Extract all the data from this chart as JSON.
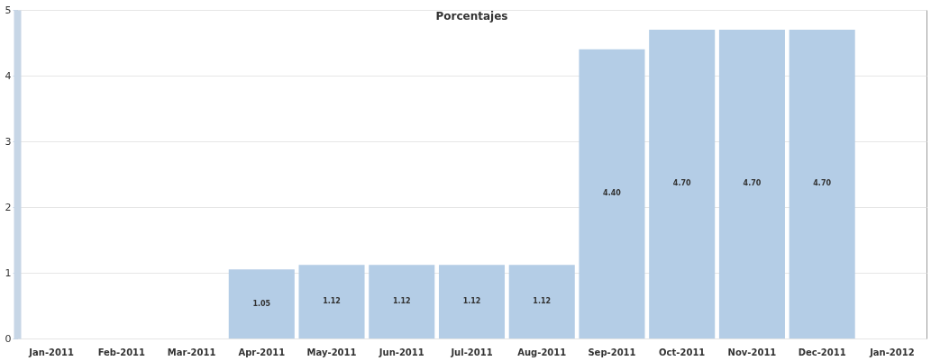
{
  "chart_data": {
    "type": "bar",
    "title": "Porcentajes",
    "categories": [
      "Jan-2011",
      "Feb-2011",
      "Mar-2011",
      "Apr-2011",
      "May-2011",
      "Jun-2011",
      "Jul-2011",
      "Aug-2011",
      "Sep-2011",
      "Oct-2011",
      "Nov-2011",
      "Dec-2011",
      "Jan-2012"
    ],
    "values": [
      0,
      0,
      0,
      1.05,
      1.12,
      1.12,
      1.12,
      1.12,
      4.4,
      4.7,
      4.7,
      4.7,
      0
    ],
    "value_labels": [
      null,
      null,
      null,
      "1.05",
      "1.12",
      "1.12",
      "1.12",
      "1.12",
      "4.40",
      "4.70",
      "4.70",
      "4.70",
      null
    ],
    "color": "#b4cde6",
    "ylim": [
      0,
      5
    ],
    "yticks": [
      0,
      1,
      2,
      3,
      4,
      5
    ],
    "grid": "y"
  }
}
